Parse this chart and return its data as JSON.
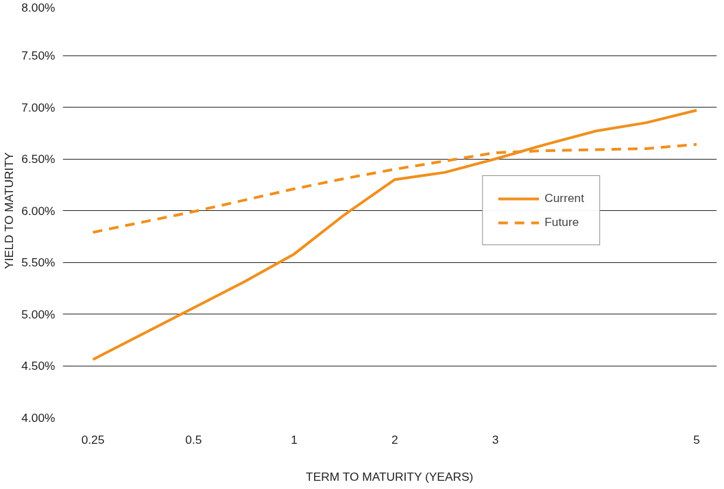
{
  "chart_data": {
    "type": "line",
    "xlabel": "TERM TO MATURITY (YEARS)",
    "ylabel": "YIELD TO MATURITY",
    "categories": [
      "0.25",
      null,
      "0.5",
      null,
      "1",
      null,
      "2",
      null,
      "3",
      null,
      null,
      null,
      "5"
    ],
    "series": [
      {
        "name": "Current",
        "color": "#f0901e",
        "line_style": "solid",
        "values": [
          4.56,
          4.81,
          5.06,
          5.31,
          5.58,
          5.96,
          6.3,
          6.37,
          6.5,
          6.64,
          6.77,
          6.85,
          6.97
        ]
      },
      {
        "name": "Future",
        "color": "#f0901e",
        "line_style": "dashed",
        "values": [
          5.79,
          5.89,
          5.99,
          6.1,
          6.21,
          6.31,
          6.4,
          6.48,
          6.56,
          6.58,
          6.59,
          6.6,
          6.64
        ]
      }
    ],
    "ylim": [
      4,
      8
    ],
    "yticks": [
      {
        "value": 4,
        "label": "4.00%"
      },
      {
        "value": 4.5,
        "label": "4.50%"
      },
      {
        "value": 5,
        "label": "5.00%"
      },
      {
        "value": 5.5,
        "label": "5.50%"
      },
      {
        "value": 6,
        "label": "6.00%"
      },
      {
        "value": 6.5,
        "label": "6.50%"
      },
      {
        "value": 7,
        "label": "7.00%"
      },
      {
        "value": 7.5,
        "label": "7.50%"
      },
      {
        "value": 8,
        "label": "8.00%"
      }
    ],
    "grid": "y",
    "legend": "right",
    "marker": "none"
  }
}
